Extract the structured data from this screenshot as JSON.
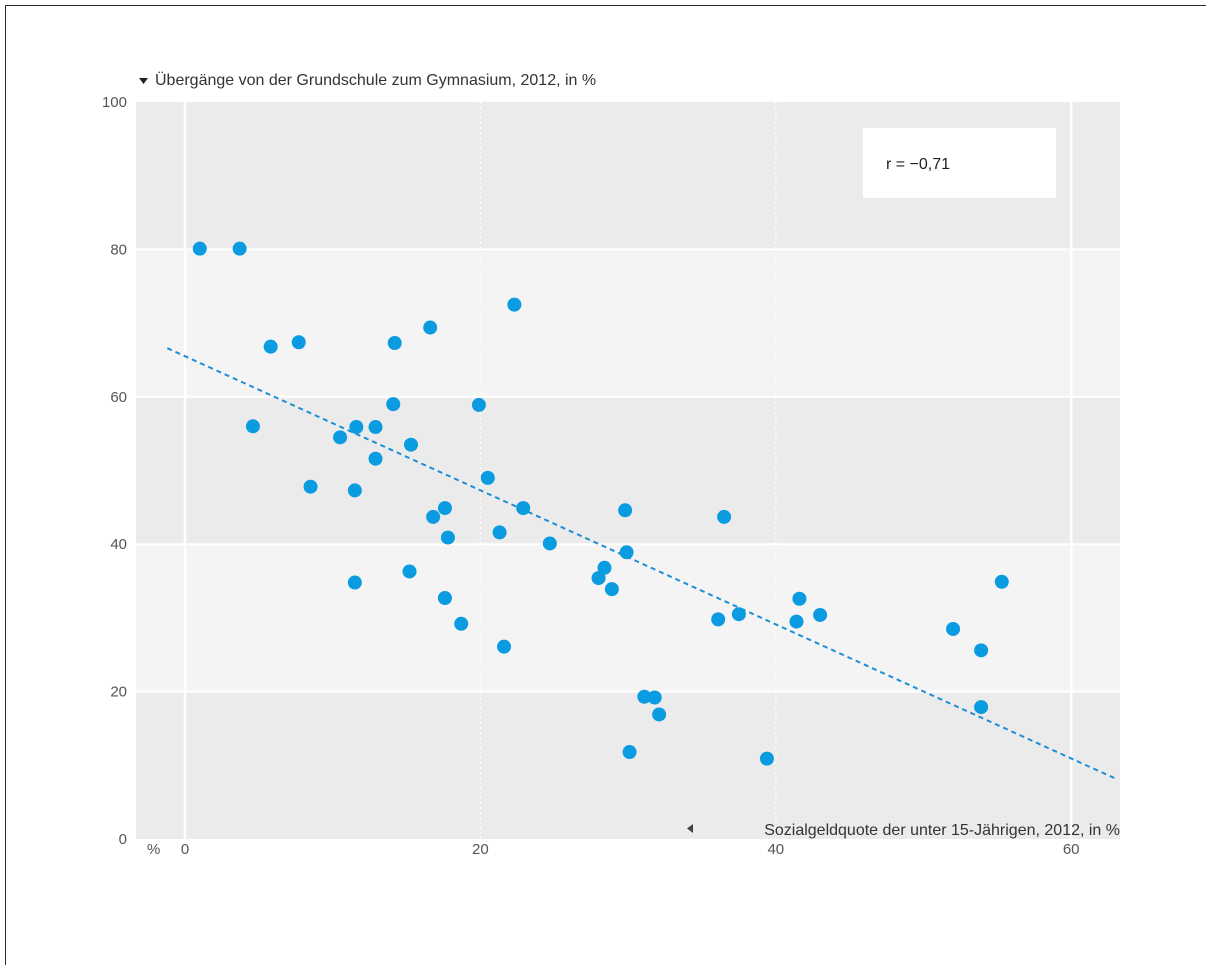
{
  "chart_data": {
    "type": "scatter",
    "y_axis_title": "Übergänge von der Grundschule zum Gymnasium, 2012, in %",
    "x_axis_title": "Sozialgeldquote der unter 15-Jährigen, 2012, in %",
    "x_unit_label": "%",
    "xlim": [
      0,
      63
    ],
    "ylim": [
      0,
      100
    ],
    "x_ticks": [
      0,
      20,
      40,
      60
    ],
    "y_ticks": [
      0,
      20,
      40,
      60,
      80,
      100
    ],
    "correlation_label": "r = −0,71",
    "trendline": {
      "x": [
        -1.2,
        63.0
      ],
      "y": [
        66.6,
        8.2
      ]
    },
    "colors": {
      "points": "#0a9be0",
      "trendline": "#1a8fd6",
      "band_dark": "#ebebeb",
      "band_light": "#f4f4f4"
    },
    "points": [
      {
        "x": 1.0,
        "y": 80.1
      },
      {
        "x": 3.7,
        "y": 80.1
      },
      {
        "x": 4.6,
        "y": 56.0
      },
      {
        "x": 5.8,
        "y": 66.8
      },
      {
        "x": 7.7,
        "y": 67.4
      },
      {
        "x": 8.5,
        "y": 47.8
      },
      {
        "x": 10.5,
        "y": 54.5
      },
      {
        "x": 11.6,
        "y": 55.9
      },
      {
        "x": 11.5,
        "y": 47.3
      },
      {
        "x": 11.5,
        "y": 34.8
      },
      {
        "x": 12.9,
        "y": 55.9
      },
      {
        "x": 12.9,
        "y": 51.6
      },
      {
        "x": 14.1,
        "y": 59.0
      },
      {
        "x": 14.2,
        "y": 67.3
      },
      {
        "x": 15.3,
        "y": 53.5
      },
      {
        "x": 15.2,
        "y": 36.3
      },
      {
        "x": 16.6,
        "y": 69.4
      },
      {
        "x": 16.8,
        "y": 43.7
      },
      {
        "x": 17.6,
        "y": 44.9
      },
      {
        "x": 17.8,
        "y": 40.9
      },
      {
        "x": 17.6,
        "y": 32.7
      },
      {
        "x": 18.7,
        "y": 29.2
      },
      {
        "x": 19.9,
        "y": 58.9
      },
      {
        "x": 20.5,
        "y": 49.0
      },
      {
        "x": 21.3,
        "y": 41.6
      },
      {
        "x": 21.6,
        "y": 26.1
      },
      {
        "x": 22.3,
        "y": 72.5
      },
      {
        "x": 22.9,
        "y": 44.9
      },
      {
        "x": 24.7,
        "y": 40.1
      },
      {
        "x": 28.0,
        "y": 35.4
      },
      {
        "x": 28.4,
        "y": 36.8
      },
      {
        "x": 28.9,
        "y": 33.9
      },
      {
        "x": 29.8,
        "y": 44.6
      },
      {
        "x": 29.9,
        "y": 38.9
      },
      {
        "x": 30.1,
        "y": 11.8
      },
      {
        "x": 31.1,
        "y": 19.3
      },
      {
        "x": 31.8,
        "y": 19.2
      },
      {
        "x": 32.1,
        "y": 16.9
      },
      {
        "x": 36.1,
        "y": 29.8
      },
      {
        "x": 36.5,
        "y": 43.7
      },
      {
        "x": 37.5,
        "y": 30.5
      },
      {
        "x": 39.4,
        "y": 10.9
      },
      {
        "x": 41.4,
        "y": 29.5
      },
      {
        "x": 41.6,
        "y": 32.6
      },
      {
        "x": 43.0,
        "y": 30.4
      },
      {
        "x": 52.0,
        "y": 28.5
      },
      {
        "x": 53.9,
        "y": 25.6
      },
      {
        "x": 53.9,
        "y": 17.9
      },
      {
        "x": 55.3,
        "y": 34.9
      }
    ]
  }
}
